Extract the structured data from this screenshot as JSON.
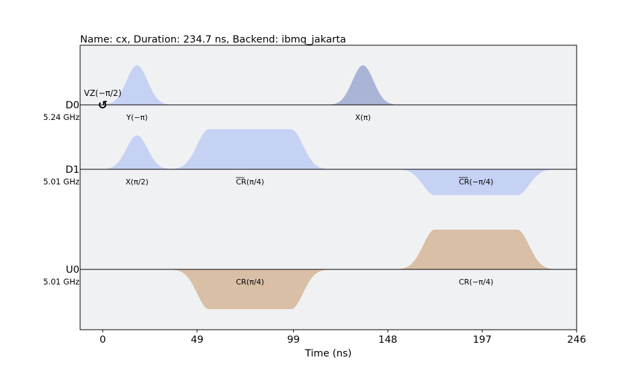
{
  "chart_data": {
    "type": "pulse-schedule",
    "title": "Name: cx, Duration: 234.7 ns, Backend: ibmq_jakarta",
    "xlabel": "Time (ns)",
    "xlim": [
      -11,
      246
    ],
    "xticks": [
      0,
      49,
      99,
      148,
      197,
      246
    ],
    "grid": false,
    "channels": [
      {
        "name": "D0",
        "frequency": "5.24 GHz"
      },
      {
        "name": "D1",
        "frequency": "5.01 GHz"
      },
      {
        "name": "U0",
        "frequency": "5.01 GHz"
      }
    ],
    "pulses": [
      {
        "channel": "D0",
        "label": "Y(−π)",
        "shape": "gaussian",
        "start": 0,
        "end": 35.6,
        "amplitude": 0.62,
        "color": "#c6d2f4"
      },
      {
        "channel": "D0",
        "label": "X(π)",
        "shape": "gaussian",
        "start": 117.3,
        "end": 152.9,
        "amplitude": 0.62,
        "color": "#a9b4d6"
      },
      {
        "channel": "D1",
        "label": "X(π/2)",
        "shape": "gaussian",
        "start": 0,
        "end": 35.6,
        "amplitude": 0.55,
        "color": "#c6d2f4"
      },
      {
        "channel": "D1",
        "label": "CR(π/4)",
        "label_overline": "CR",
        "shape": "gaussian_square",
        "start": 35.6,
        "end": 117.3,
        "flat_start": 55.1,
        "flat_end": 97.8,
        "amplitude": 0.65,
        "color": "#c6d2f4"
      },
      {
        "channel": "D1",
        "label": "CR(−π/4)",
        "label_overline": "CR",
        "shape": "gaussian_square",
        "start": 152.9,
        "end": 234.7,
        "flat_start": 172.4,
        "flat_end": 215.2,
        "amplitude": -0.42,
        "color": "#c6d2f4"
      },
      {
        "channel": "U0",
        "label": "CR(−π/4)",
        "shape": "gaussian_square",
        "start": 152.9,
        "end": 234.7,
        "flat_start": 172.4,
        "flat_end": 215.2,
        "amplitude": 0.4,
        "color": "#d8bfa6"
      },
      {
        "channel": "U0",
        "label": "CR(π/4)",
        "shape": "gaussian_square",
        "start": 35.6,
        "end": 117.3,
        "flat_start": 55.1,
        "flat_end": 97.8,
        "amplitude": -0.4,
        "color": "#d8bfa6"
      }
    ],
    "frame_changes": [
      {
        "channel": "D0",
        "time": 0,
        "label": "VZ(−π/2)",
        "symbol": "↺"
      }
    ],
    "background_color": "#f0f1f3"
  }
}
